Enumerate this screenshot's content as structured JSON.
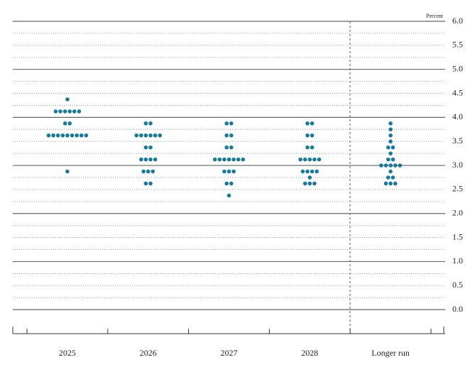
{
  "chart_data": {
    "type": "dot",
    "y_axis_label": "Percent",
    "categories": [
      "2025",
      "2026",
      "2027",
      "2028",
      "Longer run"
    ],
    "dots": [
      [
        4.375,
        4.125,
        4.125,
        4.125,
        4.125,
        4.125,
        4.125,
        3.875,
        3.875,
        3.625,
        3.625,
        3.625,
        3.625,
        3.625,
        3.625,
        3.625,
        3.625,
        3.625,
        2.875
      ],
      [
        3.875,
        3.875,
        3.625,
        3.625,
        3.625,
        3.625,
        3.625,
        3.625,
        3.375,
        3.375,
        3.125,
        3.125,
        3.125,
        3.125,
        2.875,
        2.875,
        2.875,
        2.625,
        2.625
      ],
      [
        3.875,
        3.875,
        3.625,
        3.625,
        3.375,
        3.375,
        3.125,
        3.125,
        3.125,
        3.125,
        3.125,
        3.125,
        3.125,
        2.875,
        2.875,
        2.875,
        2.625,
        2.625,
        2.375
      ],
      [
        3.875,
        3.875,
        3.625,
        3.625,
        3.375,
        3.375,
        3.125,
        3.125,
        3.125,
        3.125,
        3.125,
        2.875,
        2.875,
        2.875,
        2.875,
        2.75,
        2.625,
        2.625,
        2.625
      ],
      [
        3.875,
        3.75,
        3.625,
        3.5,
        3.375,
        3.375,
        3.25,
        3.125,
        3.125,
        3.0,
        3.0,
        3.0,
        3.0,
        3.0,
        2.875,
        2.75,
        2.75,
        2.625,
        2.625,
        2.625
      ]
    ],
    "color": "#17799c",
    "ylim": [
      -0.5,
      6.0
    ],
    "yticks": [
      {
        "value": 0,
        "label": "0.0"
      },
      {
        "value": 0.5,
        "label": "0.5"
      },
      {
        "value": 1,
        "label": "1.0"
      },
      {
        "value": 1.5,
        "label": "1.5"
      },
      {
        "value": 2,
        "label": "2.0"
      },
      {
        "value": 2.5,
        "label": "2.5"
      },
      {
        "value": 3,
        "label": "3.0"
      },
      {
        "value": 3.5,
        "label": "3.5"
      },
      {
        "value": 4,
        "label": "4.0"
      },
      {
        "value": 4.5,
        "label": "4.5"
      },
      {
        "value": 5,
        "label": "5.0"
      },
      {
        "value": 5.5,
        "label": "5.5"
      },
      {
        "value": 6,
        "label": "6.0"
      }
    ],
    "minor_yticks": [
      0.25,
      0.75,
      1.25,
      1.75,
      2.25,
      2.75,
      3.25,
      3.75,
      4.25,
      4.75,
      5.25,
      5.75
    ],
    "grid": true
  }
}
